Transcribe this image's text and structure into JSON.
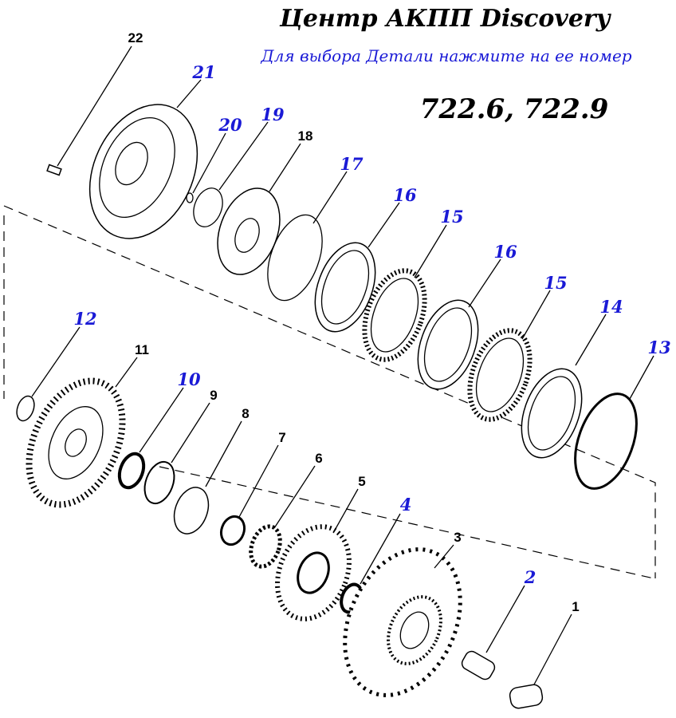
{
  "header": {
    "title": "Центр АКПП Discovery",
    "subtitle": "Для выбора Детали нажмите на ее номер",
    "model": "722.6, 722.9"
  },
  "parts": [
    {
      "label": "22"
    },
    {
      "label": "21"
    },
    {
      "label": "20"
    },
    {
      "label": "19"
    },
    {
      "label": "18"
    },
    {
      "label": "17"
    },
    {
      "label": "16"
    },
    {
      "label": "15"
    },
    {
      "label": "16"
    },
    {
      "label": "15"
    },
    {
      "label": "14"
    },
    {
      "label": "13"
    },
    {
      "label": "12"
    },
    {
      "label": "11"
    },
    {
      "label": "10"
    },
    {
      "label": "9"
    },
    {
      "label": "8"
    },
    {
      "label": "7"
    },
    {
      "label": "6"
    },
    {
      "label": "5"
    },
    {
      "label": "4"
    },
    {
      "label": "3"
    },
    {
      "label": "2"
    },
    {
      "label": "1"
    }
  ]
}
